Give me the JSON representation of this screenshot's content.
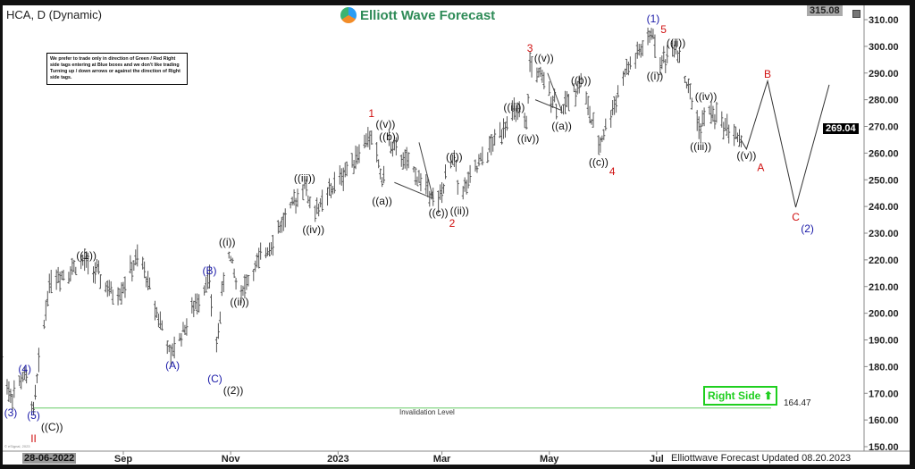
{
  "header": {
    "symbol_title": "HCA, D (Dynamic)",
    "brand": "Elliott Wave Forecast"
  },
  "notice": "We prefer to trade only in direction of Green / Red Right side tags entering at Blue boxes and we don't like trading Turning up / down arrows or against the direction of Right side tags.",
  "right_side_tag": {
    "label": "Right Side",
    "arrow": "⬆",
    "color": "#1fcf1f"
  },
  "invalidation": {
    "label": "Invalidation Level",
    "value": "164.47",
    "color": "#66cc66"
  },
  "footer": "Elliottwave Forecast Updated 08.20.2023",
  "start_date_label": "28-06-2022",
  "copyright": "© eSignal, 2023",
  "price_labels": {
    "top": "315.08",
    "current": "269.04"
  },
  "chart_data": {
    "type": "ohlc",
    "title": "HCA, D (Dynamic)",
    "xlim": [
      "2022-06-20",
      "2023-10-12"
    ],
    "ylim": [
      147,
      315.08
    ],
    "grid": false,
    "y_ticks": [
      "150.00",
      "160.00",
      "170.00",
      "180.00",
      "190.00",
      "200.00",
      "210.00",
      "220.00",
      "230.00",
      "240.00",
      "250.00",
      "260.00",
      "270.00",
      "280.00",
      "290.00",
      "300.00",
      "310.00"
    ],
    "x_ticks": [
      {
        "label": "Sep",
        "date": "2022-09-01"
      },
      {
        "label": "Nov",
        "date": "2022-11-01"
      },
      {
        "label": "2023",
        "date": "2023-01-01"
      },
      {
        "label": "Mar",
        "date": "2023-03-01"
      },
      {
        "label": "May",
        "date": "2023-05-01"
      },
      {
        "label": "Jul",
        "date": "2023-07-01"
      }
    ],
    "price_pivots": [
      [
        "2022-06-24",
        183
      ],
      [
        "2022-06-29",
        168
      ],
      [
        "2022-07-07",
        177
      ],
      [
        "2022-07-12",
        164.5
      ],
      [
        "2022-07-21",
        212
      ],
      [
        "2022-08-11",
        220
      ],
      [
        "2022-08-28",
        205
      ],
      [
        "2022-09-10",
        222
      ],
      [
        "2022-09-28",
        184
      ],
      [
        "2022-10-20",
        214
      ],
      [
        "2022-10-23",
        181
      ],
      [
        "2022-10-30",
        225
      ],
      [
        "2022-11-06",
        207
      ],
      [
        "2022-12-13",
        248
      ],
      [
        "2022-12-18",
        237
      ],
      [
        "2023-01-20",
        267
      ],
      [
        "2023-01-26",
        250
      ],
      [
        "2023-01-30",
        264
      ],
      [
        "2023-02-27",
        242
      ],
      [
        "2023-03-08",
        259
      ],
      [
        "2023-03-11",
        244
      ],
      [
        "2023-04-11",
        276
      ],
      [
        "2023-04-18",
        270
      ],
      [
        "2023-04-20",
        294
      ],
      [
        "2023-04-29",
        285
      ],
      [
        "2023-05-08",
        276
      ],
      [
        "2023-05-19",
        287
      ],
      [
        "2023-05-29",
        262
      ],
      [
        "2023-06-13",
        290
      ],
      [
        "2023-06-29",
        305
      ],
      [
        "2023-07-01",
        292
      ],
      [
        "2023-07-12",
        300
      ],
      [
        "2023-07-26",
        268
      ],
      [
        "2023-07-29",
        277
      ],
      [
        "2023-08-18",
        264.8
      ]
    ],
    "projection": [
      [
        "2023-08-18",
        264.8
      ],
      [
        "2023-08-21",
        261.5
      ],
      [
        "2023-09-02",
        287
      ],
      [
        "2023-09-18",
        239.7
      ],
      [
        "2023-10-07",
        285.6
      ]
    ],
    "invalidation_level": 164.47,
    "wave_labels": [
      {
        "text": "(3)",
        "date": "2022-06-29",
        "price": 163,
        "color": "#1a1aa8"
      },
      {
        "text": "(4)",
        "date": "2022-07-07",
        "price": 179.5,
        "color": "#1a1aa8"
      },
      {
        "text": "(5)",
        "date": "2022-07-12",
        "price": 162,
        "color": "#1a1aa8"
      },
      {
        "text": "((C))",
        "date": "2022-07-12",
        "price": 157.7,
        "color": "#111111"
      },
      {
        "text": "II",
        "date": "2022-07-12",
        "price": 153.3,
        "color": "#d01010"
      },
      {
        "text": "((1))",
        "date": "2022-08-11",
        "price": 222,
        "color": "#111111"
      },
      {
        "text": "(A)",
        "date": "2022-09-29",
        "price": 180.8,
        "color": "#1a1aa8"
      },
      {
        "text": "(B)",
        "date": "2022-10-20",
        "price": 216.3,
        "color": "#1a1aa8"
      },
      {
        "text": "(C)",
        "date": "2022-10-23",
        "price": 175.8,
        "color": "#1a1aa8"
      },
      {
        "text": "((2))",
        "date": "2022-10-23",
        "price": 171.4,
        "color": "#111111"
      },
      {
        "text": "((i))",
        "date": "2022-10-30",
        "price": 227,
        "color": "#111111"
      },
      {
        "text": "((ii))",
        "date": "2022-11-06",
        "price": 204.6,
        "color": "#111111"
      },
      {
        "text": "((iii))",
        "date": "2022-12-13",
        "price": 251,
        "color": "#111111"
      },
      {
        "text": "((iv))",
        "date": "2022-12-18",
        "price": 231.7,
        "color": "#111111"
      },
      {
        "text": "1",
        "date": "2023-01-20",
        "price": 275.2,
        "color": "#d01010"
      },
      {
        "text": "((v))",
        "date": "2023-01-20",
        "price": 271.2,
        "color": "#111111"
      },
      {
        "text": "((a))",
        "date": "2023-01-26",
        "price": 242.4,
        "color": "#111111"
      },
      {
        "text": "((b))",
        "date": "2023-01-30",
        "price": 266.5,
        "color": "#111111"
      },
      {
        "text": "((c))",
        "date": "2023-02-27",
        "price": 238,
        "color": "#111111"
      },
      {
        "text": "2",
        "date": "2023-02-27",
        "price": 234,
        "color": "#d01010"
      },
      {
        "text": "((i))",
        "date": "2023-03-08",
        "price": 259,
        "color": "#111111"
      },
      {
        "text": "((ii))",
        "date": "2023-03-11",
        "price": 238.7,
        "color": "#111111"
      },
      {
        "text": "((iii))",
        "date": "2023-04-11",
        "price": 277.5,
        "color": "#111111"
      },
      {
        "text": "((iv))",
        "date": "2023-04-19",
        "price": 265.8,
        "color": "#111111"
      },
      {
        "text": "3",
        "date": "2023-04-20",
        "price": 299.6,
        "color": "#d01010"
      },
      {
        "text": "((v))",
        "date": "2023-04-20",
        "price": 296,
        "color": "#111111"
      },
      {
        "text": "((a))",
        "date": "2023-05-08",
        "price": 270.5,
        "color": "#111111"
      },
      {
        "text": "((b))",
        "date": "2023-05-19",
        "price": 287.6,
        "color": "#111111"
      },
      {
        "text": "((c))",
        "date": "2023-05-29",
        "price": 257,
        "color": "#111111"
      },
      {
        "text": "4",
        "date": "2023-05-29",
        "price": 253.4,
        "color": "#d01010"
      },
      {
        "text": "(1)",
        "date": "2023-06-29",
        "price": 310.7,
        "color": "#1a1aa8"
      },
      {
        "text": "5",
        "date": "2023-06-29",
        "price": 306.7,
        "color": "#d01010"
      },
      {
        "text": "((i))",
        "date": "2023-06-30",
        "price": 289.2,
        "color": "#111111"
      },
      {
        "text": "((ii))",
        "date": "2023-07-12",
        "price": 301.6,
        "color": "#111111"
      },
      {
        "text": "((iii))",
        "date": "2023-07-26",
        "price": 262.8,
        "color": "#111111"
      },
      {
        "text": "((iv))",
        "date": "2023-07-29",
        "price": 281.5,
        "color": "#111111"
      },
      {
        "text": "((v))",
        "date": "2023-08-21",
        "price": 259.5,
        "color": "#111111"
      },
      {
        "text": "A",
        "date": "2023-08-21",
        "price": 255,
        "color": "#d01010"
      },
      {
        "text": "B",
        "date": "2023-09-02",
        "price": 290,
        "color": "#d01010"
      },
      {
        "text": "C",
        "date": "2023-09-18",
        "price": 236.4,
        "color": "#d01010"
      },
      {
        "text": "(2)",
        "date": "2023-09-18",
        "price": 232,
        "color": "#1a1aa8"
      }
    ]
  }
}
